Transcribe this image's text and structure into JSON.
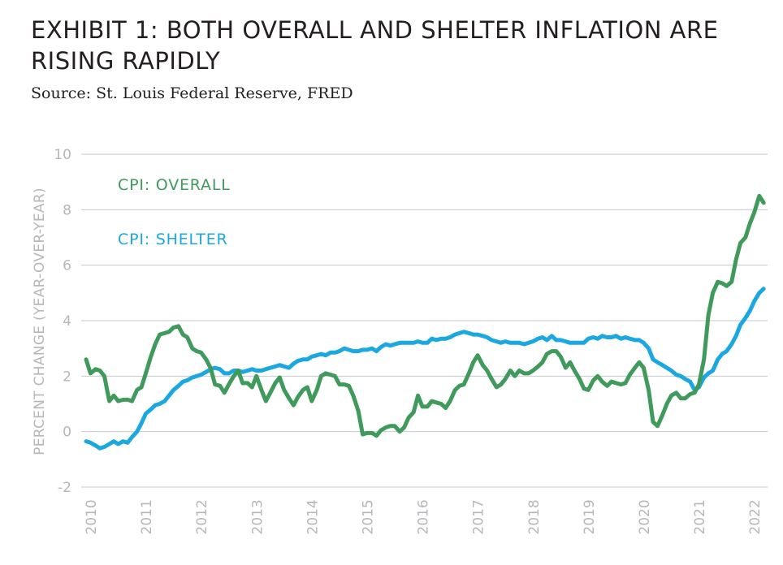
{
  "title": "EXHIBIT 1: BOTH OVERALL AND SHELTER INFLATION ARE RISING RAPIDLY",
  "source": "Source: St. Louis Federal Reserve, FRED",
  "chart_data": {
    "type": "line",
    "title": "EXHIBIT 1: BOTH OVERALL AND SHELTER INFLATION ARE RISING RAPIDLY",
    "xlabel": "",
    "ylabel": "PERCENT CHANGE (YEAR-OVER-YEAR)",
    "ylim": [
      -2,
      10
    ],
    "yticks": [
      -2,
      0,
      2,
      4,
      6,
      8,
      10
    ],
    "xlim": [
      2010.0,
      2022.3
    ],
    "xticks": [
      "2010",
      "2011",
      "2012",
      "2013",
      "2014",
      "2015",
      "2016",
      "2017",
      "2018",
      "2019",
      "2020",
      "2021",
      "2022"
    ],
    "grid": "horizontal",
    "series": [
      {
        "name": "CPI: OVERALL",
        "color": "#3f9a5b",
        "points": [
          [
            2010.0,
            2.6
          ],
          [
            2010.08,
            2.1
          ],
          [
            2010.17,
            2.25
          ],
          [
            2010.25,
            2.2
          ],
          [
            2010.33,
            2.0
          ],
          [
            2010.42,
            1.1
          ],
          [
            2010.5,
            1.3
          ],
          [
            2010.58,
            1.1
          ],
          [
            2010.67,
            1.15
          ],
          [
            2010.75,
            1.15
          ],
          [
            2010.83,
            1.1
          ],
          [
            2010.92,
            1.5
          ],
          [
            2011.0,
            1.6
          ],
          [
            2011.08,
            2.1
          ],
          [
            2011.17,
            2.7
          ],
          [
            2011.25,
            3.15
          ],
          [
            2011.33,
            3.5
          ],
          [
            2011.42,
            3.55
          ],
          [
            2011.5,
            3.6
          ],
          [
            2011.58,
            3.75
          ],
          [
            2011.67,
            3.8
          ],
          [
            2011.75,
            3.5
          ],
          [
            2011.83,
            3.4
          ],
          [
            2011.92,
            3.0
          ],
          [
            2012.0,
            2.9
          ],
          [
            2012.08,
            2.85
          ],
          [
            2012.17,
            2.6
          ],
          [
            2012.25,
            2.3
          ],
          [
            2012.33,
            1.7
          ],
          [
            2012.42,
            1.65
          ],
          [
            2012.5,
            1.4
          ],
          [
            2012.58,
            1.7
          ],
          [
            2012.67,
            2.0
          ],
          [
            2012.75,
            2.2
          ],
          [
            2012.83,
            1.75
          ],
          [
            2012.92,
            1.75
          ],
          [
            2013.0,
            1.6
          ],
          [
            2013.08,
            2.0
          ],
          [
            2013.17,
            1.5
          ],
          [
            2013.25,
            1.1
          ],
          [
            2013.33,
            1.4
          ],
          [
            2013.42,
            1.75
          ],
          [
            2013.5,
            1.95
          ],
          [
            2013.58,
            1.5
          ],
          [
            2013.67,
            1.2
          ],
          [
            2013.75,
            0.95
          ],
          [
            2013.83,
            1.25
          ],
          [
            2013.92,
            1.5
          ],
          [
            2014.0,
            1.6
          ],
          [
            2014.08,
            1.1
          ],
          [
            2014.17,
            1.5
          ],
          [
            2014.25,
            2.0
          ],
          [
            2014.33,
            2.1
          ],
          [
            2014.42,
            2.05
          ],
          [
            2014.5,
            2.0
          ],
          [
            2014.58,
            1.7
          ],
          [
            2014.67,
            1.7
          ],
          [
            2014.75,
            1.65
          ],
          [
            2014.83,
            1.3
          ],
          [
            2014.92,
            0.75
          ],
          [
            2015.0,
            -0.1
          ],
          [
            2015.08,
            -0.05
          ],
          [
            2015.17,
            -0.05
          ],
          [
            2015.25,
            -0.15
          ],
          [
            2015.33,
            0.05
          ],
          [
            2015.42,
            0.15
          ],
          [
            2015.5,
            0.2
          ],
          [
            2015.58,
            0.2
          ],
          [
            2015.67,
            0.0
          ],
          [
            2015.75,
            0.15
          ],
          [
            2015.83,
            0.5
          ],
          [
            2015.92,
            0.7
          ],
          [
            2016.0,
            1.3
          ],
          [
            2016.08,
            0.9
          ],
          [
            2016.17,
            0.9
          ],
          [
            2016.25,
            1.1
          ],
          [
            2016.33,
            1.05
          ],
          [
            2016.42,
            1.0
          ],
          [
            2016.5,
            0.85
          ],
          [
            2016.58,
            1.1
          ],
          [
            2016.67,
            1.5
          ],
          [
            2016.75,
            1.65
          ],
          [
            2016.83,
            1.7
          ],
          [
            2016.92,
            2.1
          ],
          [
            2017.0,
            2.5
          ],
          [
            2017.08,
            2.75
          ],
          [
            2017.17,
            2.4
          ],
          [
            2017.25,
            2.2
          ],
          [
            2017.33,
            1.9
          ],
          [
            2017.42,
            1.6
          ],
          [
            2017.5,
            1.7
          ],
          [
            2017.58,
            1.9
          ],
          [
            2017.67,
            2.2
          ],
          [
            2017.75,
            2.0
          ],
          [
            2017.83,
            2.2
          ],
          [
            2017.92,
            2.1
          ],
          [
            2018.0,
            2.1
          ],
          [
            2018.08,
            2.2
          ],
          [
            2018.17,
            2.35
          ],
          [
            2018.25,
            2.5
          ],
          [
            2018.33,
            2.8
          ],
          [
            2018.42,
            2.9
          ],
          [
            2018.5,
            2.9
          ],
          [
            2018.58,
            2.7
          ],
          [
            2018.67,
            2.3
          ],
          [
            2018.75,
            2.5
          ],
          [
            2018.83,
            2.2
          ],
          [
            2018.92,
            1.9
          ],
          [
            2019.0,
            1.55
          ],
          [
            2019.08,
            1.5
          ],
          [
            2019.17,
            1.85
          ],
          [
            2019.25,
            2.0
          ],
          [
            2019.33,
            1.8
          ],
          [
            2019.42,
            1.65
          ],
          [
            2019.5,
            1.8
          ],
          [
            2019.58,
            1.75
          ],
          [
            2019.67,
            1.7
          ],
          [
            2019.75,
            1.75
          ],
          [
            2019.83,
            2.05
          ],
          [
            2019.92,
            2.3
          ],
          [
            2020.0,
            2.5
          ],
          [
            2020.08,
            2.3
          ],
          [
            2020.17,
            1.5
          ],
          [
            2020.25,
            0.35
          ],
          [
            2020.33,
            0.2
          ],
          [
            2020.42,
            0.6
          ],
          [
            2020.5,
            1.0
          ],
          [
            2020.58,
            1.3
          ],
          [
            2020.67,
            1.4
          ],
          [
            2020.75,
            1.2
          ],
          [
            2020.83,
            1.2
          ],
          [
            2020.92,
            1.35
          ],
          [
            2021.0,
            1.4
          ],
          [
            2021.08,
            1.7
          ],
          [
            2021.17,
            2.6
          ],
          [
            2021.25,
            4.2
          ],
          [
            2021.33,
            5.0
          ],
          [
            2021.42,
            5.4
          ],
          [
            2021.5,
            5.35
          ],
          [
            2021.58,
            5.25
          ],
          [
            2021.67,
            5.4
          ],
          [
            2021.75,
            6.2
          ],
          [
            2021.83,
            6.8
          ],
          [
            2021.92,
            7.0
          ],
          [
            2022.0,
            7.5
          ],
          [
            2022.08,
            7.9
          ],
          [
            2022.17,
            8.5
          ],
          [
            2022.25,
            8.25
          ]
        ]
      },
      {
        "name": "CPI: SHELTER",
        "color": "#1ba8e0",
        "points": [
          [
            2010.0,
            -0.35
          ],
          [
            2010.08,
            -0.4
          ],
          [
            2010.17,
            -0.5
          ],
          [
            2010.25,
            -0.6
          ],
          [
            2010.33,
            -0.55
          ],
          [
            2010.42,
            -0.45
          ],
          [
            2010.5,
            -0.35
          ],
          [
            2010.58,
            -0.45
          ],
          [
            2010.67,
            -0.35
          ],
          [
            2010.75,
            -0.4
          ],
          [
            2010.83,
            -0.2
          ],
          [
            2010.92,
            0.0
          ],
          [
            2011.0,
            0.3
          ],
          [
            2011.08,
            0.65
          ],
          [
            2011.17,
            0.8
          ],
          [
            2011.25,
            0.95
          ],
          [
            2011.33,
            1.0
          ],
          [
            2011.42,
            1.1
          ],
          [
            2011.5,
            1.3
          ],
          [
            2011.58,
            1.5
          ],
          [
            2011.67,
            1.65
          ],
          [
            2011.75,
            1.8
          ],
          [
            2011.83,
            1.85
          ],
          [
            2011.92,
            1.95
          ],
          [
            2012.0,
            2.0
          ],
          [
            2012.08,
            2.05
          ],
          [
            2012.17,
            2.15
          ],
          [
            2012.25,
            2.25
          ],
          [
            2012.33,
            2.3
          ],
          [
            2012.42,
            2.25
          ],
          [
            2012.5,
            2.1
          ],
          [
            2012.58,
            2.1
          ],
          [
            2012.67,
            2.2
          ],
          [
            2012.75,
            2.2
          ],
          [
            2012.83,
            2.15
          ],
          [
            2012.92,
            2.2
          ],
          [
            2013.0,
            2.25
          ],
          [
            2013.08,
            2.2
          ],
          [
            2013.17,
            2.2
          ],
          [
            2013.25,
            2.25
          ],
          [
            2013.33,
            2.3
          ],
          [
            2013.42,
            2.35
          ],
          [
            2013.5,
            2.4
          ],
          [
            2013.58,
            2.35
          ],
          [
            2013.67,
            2.3
          ],
          [
            2013.75,
            2.45
          ],
          [
            2013.83,
            2.55
          ],
          [
            2013.92,
            2.6
          ],
          [
            2014.0,
            2.6
          ],
          [
            2014.08,
            2.7
          ],
          [
            2014.17,
            2.75
          ],
          [
            2014.25,
            2.8
          ],
          [
            2014.33,
            2.75
          ],
          [
            2014.42,
            2.85
          ],
          [
            2014.5,
            2.85
          ],
          [
            2014.58,
            2.9
          ],
          [
            2014.67,
            3.0
          ],
          [
            2014.75,
            2.95
          ],
          [
            2014.83,
            2.9
          ],
          [
            2014.92,
            2.9
          ],
          [
            2015.0,
            2.95
          ],
          [
            2015.08,
            2.95
          ],
          [
            2015.17,
            3.0
          ],
          [
            2015.25,
            2.9
          ],
          [
            2015.33,
            3.05
          ],
          [
            2015.42,
            3.15
          ],
          [
            2015.5,
            3.1
          ],
          [
            2015.58,
            3.15
          ],
          [
            2015.67,
            3.2
          ],
          [
            2015.75,
            3.2
          ],
          [
            2015.83,
            3.2
          ],
          [
            2015.92,
            3.2
          ],
          [
            2016.0,
            3.25
          ],
          [
            2016.08,
            3.2
          ],
          [
            2016.17,
            3.2
          ],
          [
            2016.25,
            3.35
          ],
          [
            2016.33,
            3.3
          ],
          [
            2016.42,
            3.35
          ],
          [
            2016.5,
            3.35
          ],
          [
            2016.58,
            3.4
          ],
          [
            2016.67,
            3.5
          ],
          [
            2016.75,
            3.55
          ],
          [
            2016.83,
            3.6
          ],
          [
            2016.92,
            3.55
          ],
          [
            2017.0,
            3.5
          ],
          [
            2017.08,
            3.5
          ],
          [
            2017.17,
            3.45
          ],
          [
            2017.25,
            3.4
          ],
          [
            2017.33,
            3.3
          ],
          [
            2017.42,
            3.25
          ],
          [
            2017.5,
            3.2
          ],
          [
            2017.58,
            3.25
          ],
          [
            2017.67,
            3.2
          ],
          [
            2017.75,
            3.2
          ],
          [
            2017.83,
            3.2
          ],
          [
            2017.92,
            3.15
          ],
          [
            2018.0,
            3.2
          ],
          [
            2018.08,
            3.25
          ],
          [
            2018.17,
            3.35
          ],
          [
            2018.25,
            3.4
          ],
          [
            2018.33,
            3.3
          ],
          [
            2018.42,
            3.45
          ],
          [
            2018.5,
            3.3
          ],
          [
            2018.58,
            3.3
          ],
          [
            2018.67,
            3.25
          ],
          [
            2018.75,
            3.2
          ],
          [
            2018.83,
            3.2
          ],
          [
            2018.92,
            3.2
          ],
          [
            2019.0,
            3.2
          ],
          [
            2019.08,
            3.35
          ],
          [
            2019.17,
            3.4
          ],
          [
            2019.25,
            3.35
          ],
          [
            2019.33,
            3.45
          ],
          [
            2019.42,
            3.4
          ],
          [
            2019.5,
            3.4
          ],
          [
            2019.58,
            3.45
          ],
          [
            2019.67,
            3.35
          ],
          [
            2019.75,
            3.4
          ],
          [
            2019.83,
            3.35
          ],
          [
            2019.92,
            3.3
          ],
          [
            2020.0,
            3.3
          ],
          [
            2020.08,
            3.2
          ],
          [
            2020.17,
            3.0
          ],
          [
            2020.25,
            2.6
          ],
          [
            2020.33,
            2.5
          ],
          [
            2020.42,
            2.4
          ],
          [
            2020.5,
            2.3
          ],
          [
            2020.58,
            2.2
          ],
          [
            2020.67,
            2.05
          ],
          [
            2020.75,
            2.0
          ],
          [
            2020.83,
            1.9
          ],
          [
            2020.92,
            1.8
          ],
          [
            2021.0,
            1.5
          ],
          [
            2021.08,
            1.6
          ],
          [
            2021.17,
            1.95
          ],
          [
            2021.25,
            2.1
          ],
          [
            2021.33,
            2.2
          ],
          [
            2021.42,
            2.6
          ],
          [
            2021.5,
            2.8
          ],
          [
            2021.58,
            2.9
          ],
          [
            2021.67,
            3.15
          ],
          [
            2021.75,
            3.45
          ],
          [
            2021.83,
            3.85
          ],
          [
            2021.92,
            4.1
          ],
          [
            2022.0,
            4.35
          ],
          [
            2022.08,
            4.7
          ],
          [
            2022.17,
            5.0
          ],
          [
            2022.25,
            5.15
          ]
        ]
      }
    ]
  }
}
